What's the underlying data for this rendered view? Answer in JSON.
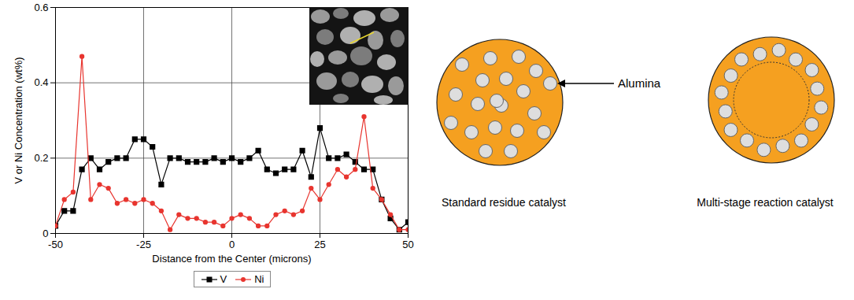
{
  "chart_data": {
    "type": "line",
    "xlabel": "Distance from the Center (microns)",
    "ylabel": "V or Ni Concentration (wt%)",
    "x": [
      -50,
      -47.5,
      -45,
      -42.5,
      -40,
      -37.5,
      -35,
      -32.5,
      -30,
      -27.5,
      -25,
      -22.5,
      -20,
      -17.5,
      -15,
      -12.5,
      -10,
      -7.5,
      -5,
      -2.5,
      0,
      2.5,
      5,
      7.5,
      10,
      12.5,
      15,
      17.5,
      20,
      22.5,
      25,
      27.5,
      30,
      32.5,
      35,
      37.5,
      40,
      42.5,
      45,
      47.5,
      50
    ],
    "series": [
      {
        "name": "V",
        "color": "#000000",
        "marker": "square",
        "values": [
          0.02,
          0.06,
          0.06,
          0.17,
          0.2,
          0.17,
          0.19,
          0.2,
          0.2,
          0.25,
          0.25,
          0.23,
          0.13,
          0.2,
          0.2,
          0.19,
          0.19,
          0.19,
          0.2,
          0.19,
          0.2,
          0.19,
          0.2,
          0.22,
          0.17,
          0.16,
          0.17,
          0.17,
          0.22,
          0.15,
          0.28,
          0.2,
          0.2,
          0.21,
          0.19,
          0.17,
          0.17,
          0.09,
          0.04,
          0.01,
          0.03
        ]
      },
      {
        "name": "Ni",
        "color": "#e8352f",
        "marker": "circle",
        "values": [
          0.02,
          0.09,
          0.11,
          0.47,
          0.09,
          0.13,
          0.12,
          0.08,
          0.09,
          0.08,
          0.09,
          0.08,
          0.06,
          0.01,
          0.05,
          0.04,
          0.04,
          0.03,
          0.03,
          0.02,
          0.04,
          0.05,
          0.04,
          0.02,
          0.02,
          0.05,
          0.06,
          0.05,
          0.06,
          0.12,
          0.09,
          0.13,
          0.17,
          0.15,
          0.17,
          0.31,
          0.12,
          0.09,
          0.05,
          0.01,
          0.01
        ]
      }
    ],
    "xlim": [
      -50,
      50
    ],
    "xticks": [
      -50,
      -25,
      0,
      25,
      50
    ],
    "ylim": [
      0,
      0.6
    ],
    "yticks": [
      0,
      0.2,
      0.4,
      0.6
    ],
    "grid": true,
    "legend": "bottom"
  },
  "diagrams": {
    "annotation": "Alumina",
    "panels": [
      {
        "label": "Standard residue catalyst"
      },
      {
        "label": "Multi-stage reaction catalyst"
      }
    ]
  }
}
